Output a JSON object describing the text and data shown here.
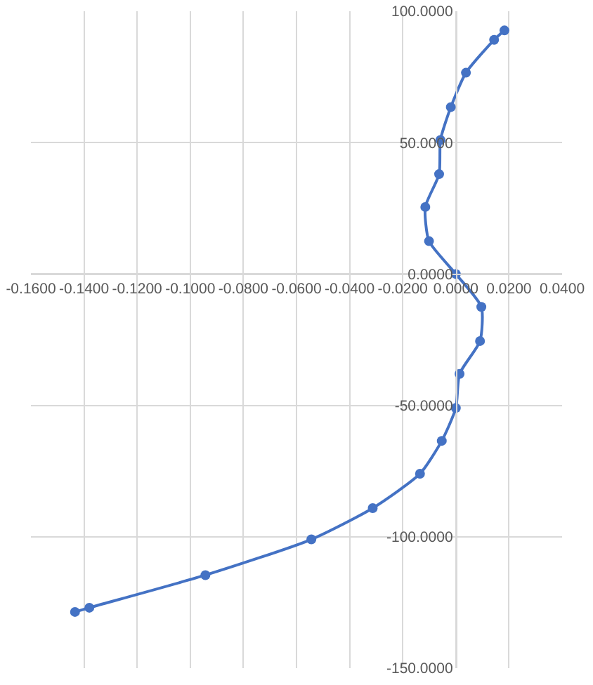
{
  "chart_data": {
    "type": "line",
    "marker": "circle",
    "line_style": "solid",
    "grid": true,
    "xlim": [
      -0.16,
      0.04
    ],
    "xticks": [
      {
        "value": -0.16,
        "label": "-0.1600"
      },
      {
        "value": -0.14,
        "label": "-0.1400"
      },
      {
        "value": -0.12,
        "label": "-0.1200"
      },
      {
        "value": -0.1,
        "label": "-0.1000"
      },
      {
        "value": -0.08,
        "label": "-0.0800"
      },
      {
        "value": -0.06,
        "label": "-0.0600"
      },
      {
        "value": -0.04,
        "label": "-0.0400"
      },
      {
        "value": -0.02,
        "label": "-0.0200"
      },
      {
        "value": 0,
        "label": "0.0000"
      },
      {
        "value": 0.02,
        "label": "0.0200"
      },
      {
        "value": 0.04,
        "label": "0.0400"
      }
    ],
    "ylim": [
      -150,
      100
    ],
    "yticks": [
      {
        "value": -150,
        "label": "-150.0000"
      },
      {
        "value": -100,
        "label": "-100.0000"
      },
      {
        "value": -50,
        "label": "-50.0000"
      },
      {
        "value": 0,
        "label": "0.0000"
      },
      {
        "value": 50,
        "label": "50.0000"
      },
      {
        "value": 100,
        "label": "100.0000"
      }
    ],
    "series": [
      {
        "color": "#4472c4",
        "x": [
          0.0183,
          0.0144,
          0.0038,
          -0.0019,
          -0.0058,
          -0.0063,
          -0.0115,
          -0.0101,
          0,
          0.0096,
          0.0091,
          0.0014,
          0,
          -0.0053,
          -0.0135,
          -0.0313,
          -0.0544,
          -0.0943,
          -0.138,
          -0.1434
        ],
        "values": [
          92.7,
          89.1,
          76.6,
          63.5,
          51,
          38,
          25.5,
          12.5,
          0,
          -12.5,
          -25.5,
          -38,
          -51,
          -63.5,
          -76,
          -89.1,
          -101,
          -114.6,
          -127,
          -128.6
        ]
      }
    ]
  }
}
